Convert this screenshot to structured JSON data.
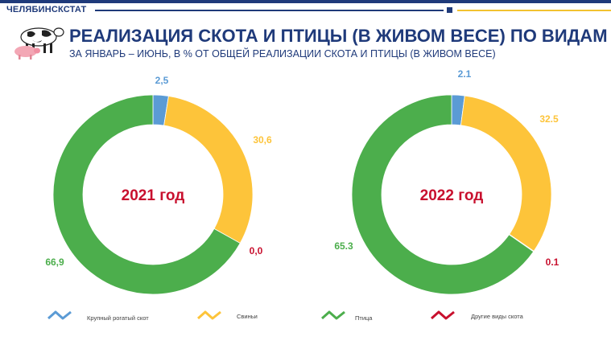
{
  "header": {
    "org": "ЧЕЛЯБИНСКСТАТ",
    "title": "РЕАЛИЗАЦИЯ СКОТА И ПТИЦЫ (В ЖИВОМ ВЕСЕ) ПО ВИДАМ",
    "subtitle": "ЗА ЯНВАРЬ – ИЮНЬ, В % ОТ ОБЩЕЙ РЕАЛИЗАЦИИ СКОТА И ПТИЦЫ (В ЖИВОМ ВЕСЕ)"
  },
  "colors": {
    "cattle": "#5b9bd5",
    "pigs": "#fdc43a",
    "poultry": "#4cae4c",
    "other": "#c8102e"
  },
  "chart_data": [
    {
      "type": "pie",
      "center_label": "2021 год",
      "categories": [
        "Крупный рогатый скот",
        "Свиньи",
        "Другие виды скота",
        "Птица"
      ],
      "values": [
        2.5,
        30.6,
        0.0,
        66.9
      ],
      "value_labels": [
        "2,5",
        "30,6",
        "0,0",
        "66,9"
      ]
    },
    {
      "type": "pie",
      "center_label": "2022 год",
      "categories": [
        "Крупный рогатый скот",
        "Свиньи",
        "Другие виды скота",
        "Птица"
      ],
      "values": [
        2.1,
        32.5,
        0.1,
        65.3
      ],
      "value_labels": [
        "2.1",
        "32.5",
        "0.1",
        "65.3"
      ]
    }
  ],
  "legend": [
    {
      "label": "Крупный рогатый скот",
      "color": "#5b9bd5"
    },
    {
      "label": "Свиньи",
      "color": "#fdc43a"
    },
    {
      "label": "Птица",
      "color": "#4cae4c"
    },
    {
      "label": "Другие виды скота",
      "color": "#c8102e"
    }
  ]
}
